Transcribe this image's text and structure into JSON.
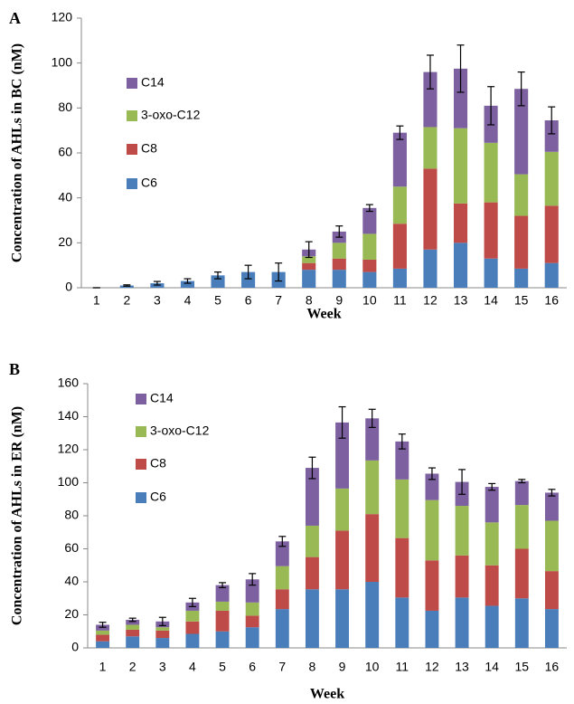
{
  "chart_data": [
    {
      "type": "bar",
      "stacked": true,
      "panel_label": "A",
      "y_label": "Concentration of AHLs in BC (nM)",
      "x_label": "Week",
      "categories": [
        "1",
        "2",
        "3",
        "4",
        "5",
        "6",
        "7",
        "8",
        "9",
        "10",
        "11",
        "12",
        "13",
        "14",
        "15",
        "16"
      ],
      "series": [
        {
          "name": "C6",
          "color": "#4a7ebb",
          "values": [
            0,
            1,
            2,
            3,
            5.5,
            7,
            7,
            8,
            8,
            7,
            8.5,
            17,
            20,
            13,
            8.5,
            11
          ]
        },
        {
          "name": "C8",
          "color": "#be4b48",
          "values": [
            0,
            0,
            0,
            0,
            0,
            0,
            0,
            3,
            5,
            5.5,
            20,
            36,
            17.5,
            25,
            23.5,
            25.5
          ]
        },
        {
          "name": "3-oxo-C12",
          "color": "#98b954",
          "values": [
            0,
            0,
            0,
            0,
            0,
            0,
            0,
            3,
            7,
            11.5,
            16.5,
            18.5,
            33.5,
            26.5,
            18.5,
            24
          ]
        },
        {
          "name": "C14",
          "color": "#7d60a0",
          "values": [
            0,
            0,
            0,
            0,
            0,
            0,
            0,
            3,
            5,
            11.5,
            24,
            24.5,
            26.5,
            16.5,
            38,
            14
          ]
        }
      ],
      "errors": [
        0,
        0.3,
        0.8,
        1,
        1.5,
        3,
        4,
        3.5,
        2.5,
        1.5,
        3,
        7.5,
        10.5,
        8.5,
        7.5,
        6
      ],
      "ylim": [
        0,
        120
      ],
      "yticks": [
        0,
        20,
        40,
        60,
        80,
        100,
        120
      ]
    },
    {
      "type": "bar",
      "stacked": true,
      "panel_label": "B",
      "y_label": "Concentration of AHLs in ER (nM)",
      "x_label": "Week",
      "categories": [
        "1",
        "2",
        "3",
        "4",
        "5",
        "6",
        "7",
        "8",
        "9",
        "10",
        "11",
        "12",
        "13",
        "14",
        "15",
        "16"
      ],
      "series": [
        {
          "name": "C6",
          "color": "#4a7ebb",
          "values": [
            4,
            7,
            6,
            8.5,
            10,
            12.5,
            23.5,
            35.5,
            35.5,
            40,
            30.5,
            22.5,
            30.5,
            25.5,
            30,
            23.5
          ]
        },
        {
          "name": "C8",
          "color": "#be4b48",
          "values": [
            4,
            4,
            4.5,
            7.5,
            12.5,
            7,
            12,
            19.5,
            35.5,
            41,
            36,
            30.5,
            25.5,
            24.5,
            30,
            23
          ]
        },
        {
          "name": "3-oxo-C12",
          "color": "#98b954",
          "values": [
            2.5,
            3,
            2,
            6.5,
            5.5,
            8,
            14,
            19,
            25.5,
            32.5,
            35.5,
            36.5,
            30,
            26,
            26.5,
            30.5
          ]
        },
        {
          "name": "C14",
          "color": "#7d60a0",
          "values": [
            3.5,
            3,
            3.5,
            5,
            10,
            14,
            15,
            35,
            40,
            25.5,
            23,
            16,
            14.5,
            21.5,
            14.5,
            17
          ]
        }
      ],
      "errors": [
        1.5,
        1,
        2.5,
        2.5,
        1.5,
        3.5,
        3,
        6.5,
        9.5,
        5.5,
        4.5,
        3.5,
        7.5,
        2,
        1,
        2
      ],
      "ylim": [
        0,
        160
      ],
      "yticks": [
        0,
        20,
        40,
        60,
        80,
        100,
        120,
        140,
        160
      ]
    }
  ]
}
